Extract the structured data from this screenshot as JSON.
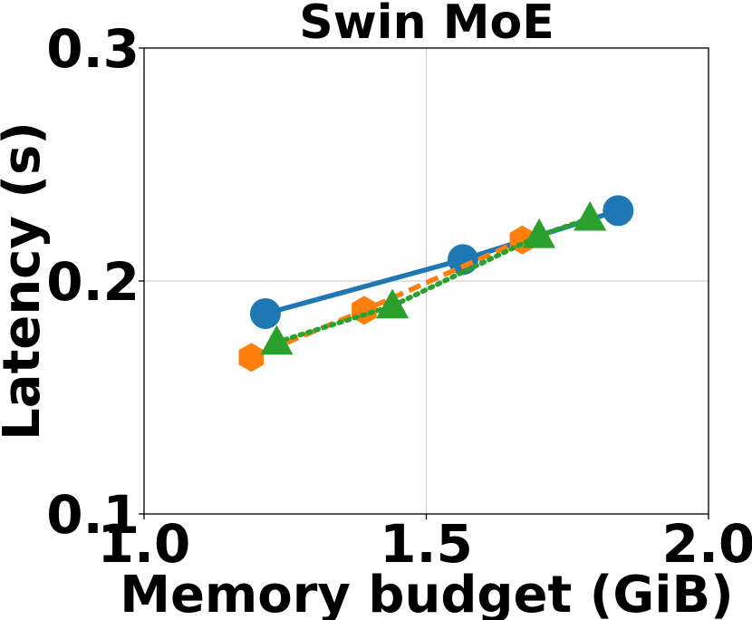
{
  "chart_data": {
    "type": "line",
    "title": "Swin MoE",
    "xlabel": "Memory budget (GiB)",
    "ylabel": "Latency (s)",
    "xlim": [
      1.0,
      2.0
    ],
    "ylim": [
      0.1,
      0.3
    ],
    "xticks": [
      "1.0",
      "1.5",
      "2.0"
    ],
    "yticks": [
      "0.1",
      "0.2",
      "0.3"
    ],
    "grid": true,
    "legend": "none",
    "series": [
      {
        "color": "#1f77b4",
        "marker": "circle",
        "linestyle": "solid",
        "x": [
          1.215,
          1.565,
          1.84
        ],
        "y": [
          0.186,
          0.2092,
          0.2302
        ]
      },
      {
        "color": "#ff7f0e",
        "marker": "hexagon",
        "linestyle": "dashed",
        "x": [
          1.19,
          1.39,
          1.67
        ],
        "y": [
          0.1672,
          0.1874,
          0.2176
        ]
      },
      {
        "color": "#2ca02c",
        "marker": "triangle",
        "linestyle": "dotted",
        "x": [
          1.235,
          1.44,
          1.7,
          1.79
        ],
        "y": [
          0.1737,
          0.1893,
          0.2195,
          0.2269
        ]
      }
    ]
  }
}
